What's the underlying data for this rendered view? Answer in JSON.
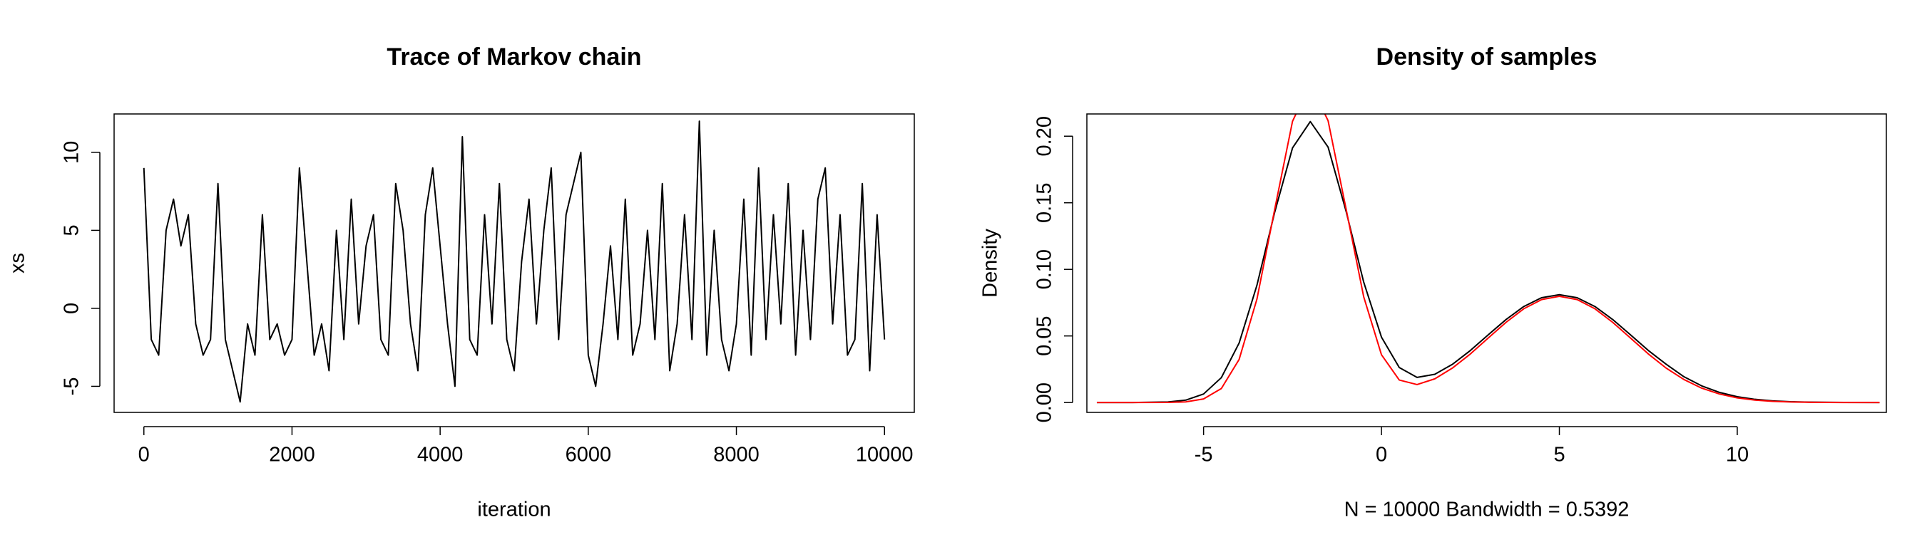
{
  "chart_data": [
    {
      "type": "line",
      "title": "Trace of Markov chain",
      "xlabel": "iteration",
      "ylabel": "xs",
      "x": [
        0,
        100,
        200,
        300,
        400,
        500,
        600,
        700,
        800,
        900,
        1000,
        1100,
        1200,
        1300,
        1400,
        1500,
        1600,
        1700,
        1800,
        1900,
        2000,
        2100,
        2200,
        2300,
        2400,
        2500,
        2600,
        2700,
        2800,
        2900,
        3000,
        3100,
        3200,
        3300,
        3400,
        3500,
        3600,
        3700,
        3800,
        3900,
        4000,
        4100,
        4200,
        4300,
        4400,
        4500,
        4600,
        4700,
        4800,
        4900,
        5000,
        5100,
        5200,
        5300,
        5400,
        5500,
        5600,
        5700,
        5800,
        5900,
        6000,
        6100,
        6200,
        6300,
        6400,
        6500,
        6600,
        6700,
        6800,
        6900,
        7000,
        7100,
        7200,
        7300,
        7400,
        7500,
        7600,
        7700,
        7800,
        7900,
        8000,
        8100,
        8200,
        8300,
        8400,
        8500,
        8600,
        8700,
        8800,
        8900,
        9000,
        9100,
        9200,
        9300,
        9400,
        9500,
        9600,
        9700,
        9800,
        9900,
        10000
      ],
      "series": [
        {
          "color": "#000000",
          "values": [
            9,
            -2,
            -3,
            5,
            7,
            4,
            6,
            -1,
            -3,
            -2,
            8,
            -2,
            -4,
            -6,
            -1,
            -3,
            6,
            -2,
            -1,
            -3,
            -2,
            9,
            3,
            -3,
            -1,
            -4,
            5,
            -2,
            7,
            -1,
            4,
            6,
            -2,
            -3,
            8,
            5,
            -1,
            -4,
            6,
            9,
            4,
            -1,
            -5,
            11,
            -2,
            -3,
            6,
            -1,
            8,
            -2,
            -4,
            3,
            7,
            -1,
            5,
            9,
            -2,
            6,
            8,
            10,
            -3,
            -5,
            -1,
            4,
            -2,
            7,
            -3,
            -1,
            5,
            -2,
            8,
            -4,
            -1,
            6,
            -2,
            12,
            -3,
            5,
            -2,
            -4,
            -1,
            7,
            -3,
            9,
            -2,
            6,
            -1,
            8,
            -3,
            5,
            -2,
            7,
            9,
            -1,
            6,
            -3,
            -2,
            8,
            -4,
            6,
            -2
          ]
        }
      ],
      "xlim": [
        -402,
        10402
      ],
      "ylim": [
        -6.67,
        12.46
      ],
      "xticks": [
        0,
        2000,
        4000,
        6000,
        8000,
        10000
      ],
      "yticks": [
        -5,
        0,
        5,
        10
      ]
    },
    {
      "type": "line",
      "title": "Density of samples",
      "xlabel": "N = 10000   Bandwidth = 0.5392",
      "ylabel": "Density",
      "x": [
        -8,
        -7,
        -6,
        -5.5,
        -5,
        -4.5,
        -4,
        -3.5,
        -3,
        -2.5,
        -2,
        -1.5,
        -1,
        -0.5,
        0,
        0.5,
        1,
        1.5,
        2,
        2.5,
        3,
        3.5,
        4,
        4.5,
        5,
        5.5,
        6,
        6.5,
        7,
        7.5,
        8,
        8.5,
        9,
        9.5,
        10,
        10.5,
        11,
        11.5,
        12,
        13,
        14
      ],
      "series": [
        {
          "color": "#000000",
          "values": [
            0,
            0,
            0.0004,
            0.0018,
            0.0064,
            0.0187,
            0.0447,
            0.0881,
            0.143,
            0.1912,
            0.211,
            0.1918,
            0.1442,
            0.0905,
            0.0491,
            0.0263,
            0.0189,
            0.0212,
            0.0288,
            0.0391,
            0.0508,
            0.0623,
            0.0721,
            0.0787,
            0.081,
            0.0787,
            0.0721,
            0.0623,
            0.0508,
            0.0391,
            0.0288,
            0.0194,
            0.0125,
            0.0076,
            0.0044,
            0.0024,
            0.0012,
            0.0006,
            0.0003,
            0.0001,
            0
          ]
        },
        {
          "color": "#ff0000",
          "values": [
            0,
            0,
            0.0001,
            0.0005,
            0.0027,
            0.0105,
            0.0324,
            0.0777,
            0.1452,
            0.2112,
            0.2395,
            0.2116,
            0.1461,
            0.0795,
            0.0359,
            0.0169,
            0.0135,
            0.0178,
            0.026,
            0.0365,
            0.0484,
            0.0602,
            0.0704,
            0.0773,
            0.0798,
            0.0773,
            0.0704,
            0.0602,
            0.0484,
            0.0365,
            0.0259,
            0.0173,
            0.0108,
            0.0064,
            0.0035,
            0.0018,
            0.0009,
            0.0004,
            0.0002,
            0,
            0
          ]
        }
      ],
      "xlim": [
        -8.28,
        14.19
      ],
      "ylim": [
        -0.0074,
        0.2167
      ],
      "xticks": [
        -5,
        0,
        5,
        10
      ],
      "yticks": [
        {
          "value": 0,
          "label": "0.00"
        },
        0.05,
        {
          "value": 0.1,
          "label": "0.10"
        },
        0.15,
        {
          "value": 0.2,
          "label": "0.20"
        }
      ]
    }
  ]
}
